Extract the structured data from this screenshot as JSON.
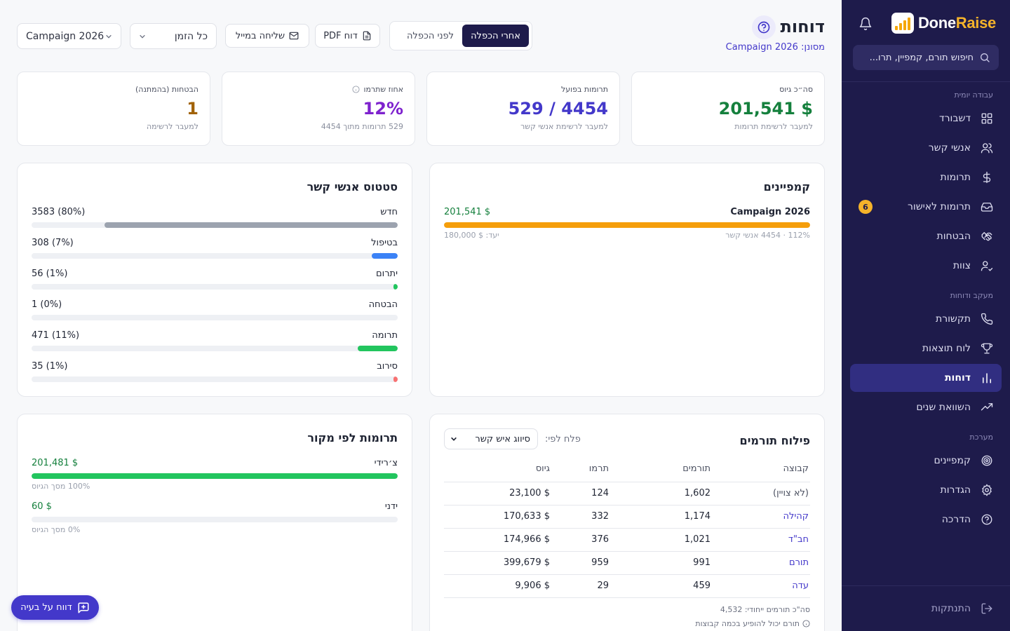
{
  "app": {
    "logo_prefix": "Done",
    "logo_accent": "Raise"
  },
  "sidebar": {
    "search_placeholder": "חיפוש תורם, קמפיין, תרו...",
    "sections": {
      "daily": "עבודה יומית",
      "tracking": "מעקב ודוחות",
      "system": "מערכת"
    },
    "items": [
      {
        "label": "דשבורד",
        "icon": "dashboard-icon"
      },
      {
        "label": "אנשי קשר",
        "icon": "users-icon"
      },
      {
        "label": "תרומות",
        "icon": "dollar-icon"
      },
      {
        "label": "תרומות לאישור",
        "icon": "inbox-icon",
        "badge": "6"
      },
      {
        "label": "הבטחות",
        "icon": "handshake-icon"
      },
      {
        "label": "צוות",
        "icon": "team-icon"
      },
      {
        "label": "תקשורת",
        "icon": "phone-icon"
      },
      {
        "label": "לוח תוצאות",
        "icon": "trophy-icon"
      },
      {
        "label": "דוחות",
        "icon": "bar-chart-icon",
        "active": true
      },
      {
        "label": "השוואת שנים",
        "icon": "trend-icon"
      },
      {
        "label": "קמפיינים",
        "icon": "target-icon"
      },
      {
        "label": "הגדרות",
        "icon": "gear-icon"
      },
      {
        "label": "הדרכה",
        "icon": "help-icon"
      }
    ],
    "logout": "התנתקות"
  },
  "header": {
    "title": "דוחות",
    "filter_prefix": "מסונן:",
    "filter_value": "Campaign 2026",
    "toggle": {
      "after": "אחרי הכפלה",
      "before": "לפני הכפלה"
    },
    "pdf_button": "דוח PDF",
    "email_button": "שליחה במייל",
    "time_select": "כל הזמן",
    "campaign_select": "Campaign 2026"
  },
  "kpis": [
    {
      "label": "סה״כ גיוס",
      "value": "$ 201,541",
      "link": "למעבר לרשימת תרומות",
      "color": "#15803d"
    },
    {
      "label": "תרומות בפועל",
      "value": "4454 / 529",
      "link": "למעבר לרשימת אנשי קשר",
      "color": "#4338ca"
    },
    {
      "label": "אחוז שתרמו",
      "value": "12%",
      "link": "529 תרומות מתוך 4454",
      "color": "#7e22ce"
    },
    {
      "label": "הבטחות (בהמתנה)",
      "value": "1",
      "link": "למעבר לרשימה",
      "color": "#a16207"
    }
  ],
  "campaigns": {
    "title": "קמפיינים",
    "items": [
      {
        "name": "Campaign 2026",
        "amount": "$ 201,541",
        "progress": 1.0,
        "meta": "112% · 4454 אנשי קשר",
        "goal": "יעד: $ 180,000"
      }
    ]
  },
  "contact_status": {
    "title": "סטטוס אנשי קשר",
    "items": [
      {
        "label": "חדש",
        "value": "(80%) 3583",
        "fraction": 0.8,
        "color": "#9ca3af"
      },
      {
        "label": "בטיפול",
        "value": "(7%) 308",
        "fraction": 0.07,
        "color": "#3b82f6"
      },
      {
        "label": "יתרום",
        "value": "(1%) 56",
        "fraction": 0.01,
        "color": "#22c55e"
      },
      {
        "label": "הבטחה",
        "value": "(0%) 1",
        "fraction": 0.0,
        "color": "#f59e0b"
      },
      {
        "label": "תרומה",
        "value": "(11%) 471",
        "fraction": 0.11,
        "color": "#22c55e"
      },
      {
        "label": "סירוב",
        "value": "(1%) 35",
        "fraction": 0.01,
        "color": "#f87171"
      }
    ]
  },
  "by_source": {
    "title": "תרומות לפי מקור",
    "items": [
      {
        "label": "צ׳רידי",
        "amount": "$ 201,481",
        "fraction": 1.0,
        "share": "100% מסך הגיוס",
        "color": "#22c55e"
      },
      {
        "label": "ידני",
        "amount": "$ 60",
        "fraction": 0.0,
        "share": "0% מסך הגיוס",
        "color": "#22c55e"
      }
    ]
  },
  "donor_breakdown": {
    "title": "פילוח תורמים",
    "filter_label": "פלח לפי:",
    "filter_value": "סיווג איש קשר",
    "columns": [
      "קבוצה",
      "תורמים",
      "תרמו",
      "גיוס"
    ],
    "rows": [
      {
        "group": "(לא צויין)",
        "donors": "1,602",
        "gave": "124",
        "raised": "$ 23,100",
        "link": false
      },
      {
        "group": "קהילה",
        "donors": "1,174",
        "gave": "332",
        "raised": "$ 170,633",
        "link": true
      },
      {
        "group": "חב\"ד",
        "donors": "1,021",
        "gave": "376",
        "raised": "$ 174,966",
        "link": true
      },
      {
        "group": "תורם",
        "donors": "991",
        "gave": "959",
        "raised": "$ 399,679",
        "link": true
      },
      {
        "group": "עדה",
        "donors": "459",
        "gave": "29",
        "raised": "$ 9,906",
        "link": true
      }
    ],
    "total_note": "סה\"כ תורמים ייחודי: 4,532",
    "info_note": "תורם יכול להופיע בכמה קבוצות"
  },
  "report_issue": "דווח על בעיה"
}
